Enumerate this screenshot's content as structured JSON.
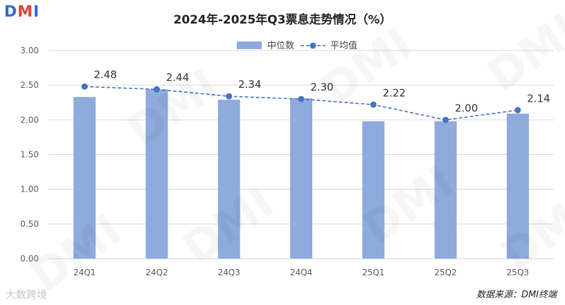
{
  "logo": {
    "d": "D",
    "m": "M",
    "i": "I"
  },
  "watermark": "DMI",
  "footer_brand": "大数跨境",
  "source_text": "数据来源：DMI终端",
  "colors": {
    "bar": "#8faadc",
    "line": "#4472c4",
    "grid": "#d9d9d9",
    "axis_text": "#595959"
  },
  "chart_data": {
    "type": "bar",
    "title": "2024年-2025年Q3票息走势情况（%）",
    "categories": [
      "24Q1",
      "24Q2",
      "24Q3",
      "24Q4",
      "25Q1",
      "25Q2",
      "25Q3"
    ],
    "series": [
      {
        "name": "中位数",
        "type": "bar",
        "values": [
          2.33,
          2.44,
          2.29,
          2.31,
          1.98,
          1.98,
          2.09
        ]
      },
      {
        "name": "平均值",
        "type": "line",
        "style": "dashed-marker",
        "values": [
          2.48,
          2.44,
          2.34,
          2.3,
          2.22,
          2.0,
          2.14
        ]
      }
    ],
    "data_labels": [
      "2.48",
      "2.44",
      "2.34",
      "2.30",
      "2.22",
      "2.00",
      "2.14"
    ],
    "ylim": [
      0,
      3.0
    ],
    "yticks": [
      "0.00",
      "0.50",
      "1.00",
      "1.50",
      "2.00",
      "2.50",
      "3.00"
    ],
    "grid": true,
    "legend_position": "top"
  }
}
